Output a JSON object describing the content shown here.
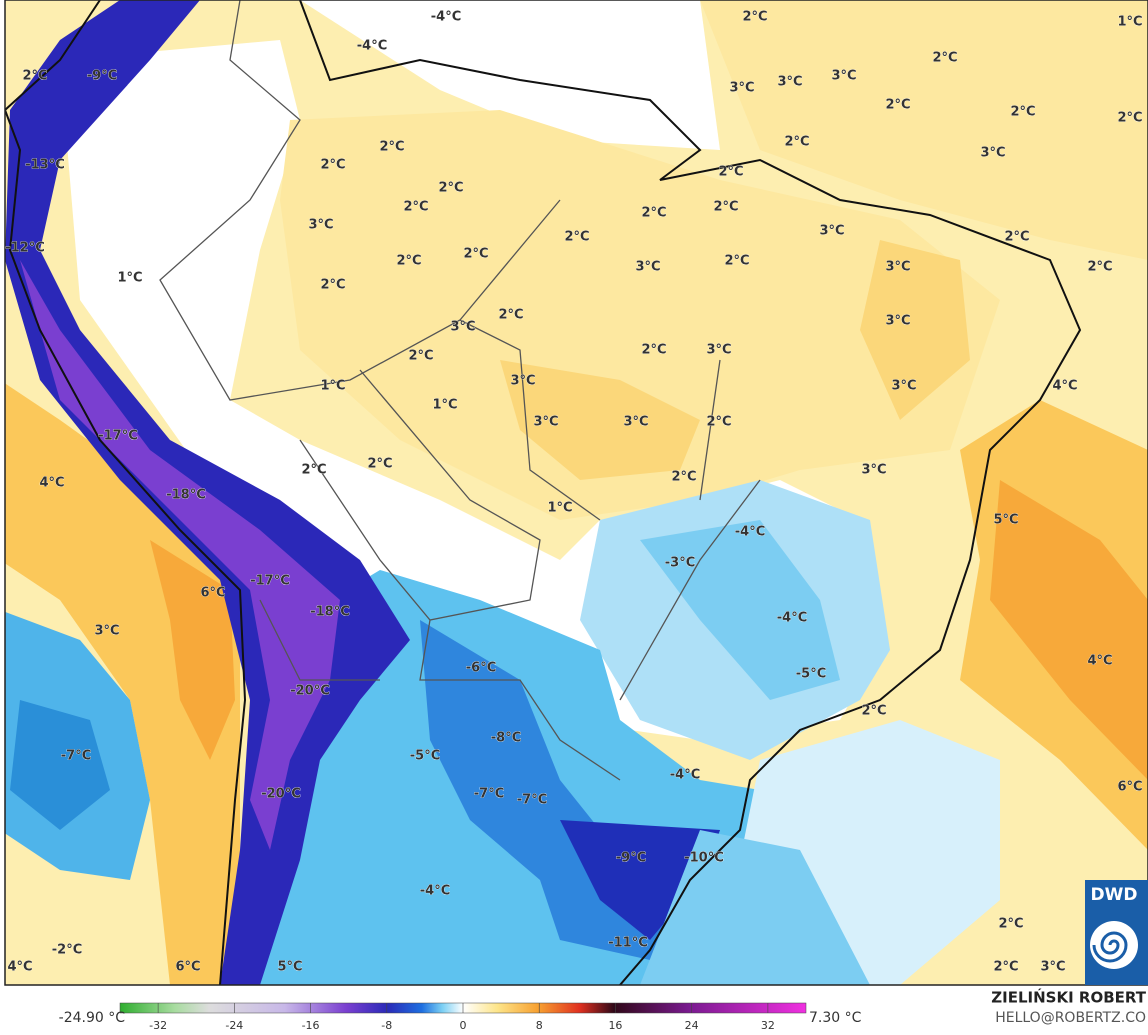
{
  "map": {
    "labels": [
      "-4°C",
      "2°C",
      "1°C",
      "-4°C",
      "2°C",
      "-9°C",
      "3°C",
      "3°C",
      "3°C",
      "2°C",
      "2°C",
      "2°C",
      "2°C",
      "2°C",
      "3°C",
      "2°C",
      "2°C",
      "-13°C",
      "2°C",
      "2°C",
      "2°C",
      "2°C",
      "2°C",
      "3°C",
      "3°C",
      "2°C",
      "2°C",
      "-12°C",
      "2°C",
      "2°C",
      "3°C",
      "2°C",
      "2°C",
      "3°C",
      "1°C",
      "2°C",
      "3°C",
      "2°C",
      "3°C",
      "2°C",
      "2°C",
      "3°C",
      "1°C",
      "3°C",
      "4°C",
      "3°C",
      "1°C",
      "-17°C",
      "3°C",
      "3°C",
      "2°C",
      "4°C",
      "2°C",
      "2°C",
      "3°C",
      "2°C",
      "-18°C",
      "1°C",
      "-4°C",
      "5°C",
      "-3°C",
      "-17°C",
      "6°C",
      "-18°C",
      "-4°C",
      "3°C",
      "-6°C",
      "4°C",
      "-5°C",
      "-20°C",
      "2°C",
      "-8°C",
      "-5°C",
      "-7°C",
      "-4°C",
      "6°C",
      "-20°C",
      "-7°C",
      "-7°C",
      "-9°C",
      "-10°C",
      "-4°C",
      "2°C",
      "-2°C",
      "-11°C",
      "4°C",
      "6°C",
      "5°C",
      "2°C",
      "3°C"
    ]
  },
  "colorbar": {
    "min_label": "-24.90 °C",
    "max_label": "7.30 °C",
    "lim": [
      -36,
      36
    ],
    "ticks": [
      -32,
      -24,
      -16,
      -8,
      0,
      8,
      16,
      24,
      32
    ]
  },
  "credit": {
    "author": "ZIELIŃSKI ROBERT",
    "email": "HELLO@ROBERTZ.CO"
  },
  "logo": "DWD"
}
